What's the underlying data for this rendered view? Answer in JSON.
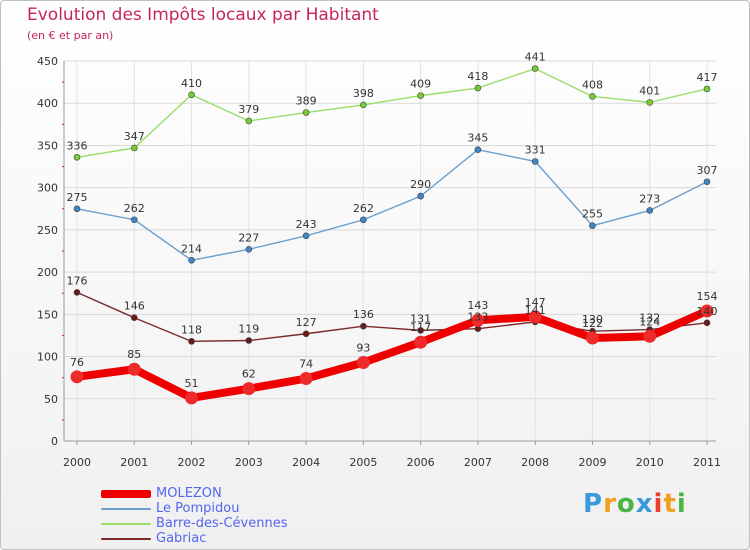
{
  "title": "Evolution des Impôts locaux par Habitant",
  "subtitle": "(en € et par an)",
  "logo": {
    "text": "Proxiti",
    "letters": [
      "P",
      "r",
      "o",
      "x",
      "i",
      "t",
      "i"
    ],
    "letter_colors": [
      "#3a9ad9",
      "#f0a020",
      "#4bb543",
      "#3a9ad9",
      "#e8402a",
      "#f0a020",
      "#4bb543"
    ]
  },
  "chart_data": {
    "type": "line",
    "title": "Evolution des Impôts locaux par Habitant",
    "subtitle": "(en € et par an)",
    "xlabel": "",
    "ylabel": "",
    "x": [
      "2000",
      "2001",
      "2002",
      "2003",
      "2004",
      "2005",
      "2006",
      "2007",
      "2008",
      "2009",
      "2010",
      "2011"
    ],
    "ylim": [
      0,
      450
    ],
    "yticks": [
      "0",
      "50",
      "100",
      "150",
      "200",
      "250",
      "300",
      "350",
      "400",
      "450"
    ],
    "grid": true,
    "legend_position": "bottom-left",
    "series": [
      {
        "name": "MOLEZON",
        "color": "#ee0000",
        "marker": "#ee2a2a",
        "values": [
          76,
          85,
          51,
          62,
          74,
          93,
          117,
          143,
          147,
          122,
          124,
          154
        ],
        "labels": [
          "76",
          "85",
          "51",
          "62",
          "74",
          "93",
          "117",
          "143",
          "147",
          "122",
          "124",
          "154"
        ]
      },
      {
        "name": "Le Pompidou",
        "color": "#6a9fcf",
        "marker": "#3d85c6",
        "values": [
          275,
          262,
          214,
          227,
          243,
          262,
          290,
          345,
          331,
          255,
          273,
          307
        ],
        "labels": [
          "275",
          "262",
          "214",
          "227",
          "243",
          "262",
          "290",
          "345",
          "331",
          "255",
          "273",
          "307"
        ]
      },
      {
        "name": "Barre-des-Cévennes",
        "color": "#99dd66",
        "marker": "#77cc33",
        "values": [
          336,
          347,
          410,
          379,
          389,
          398,
          409,
          418,
          441,
          408,
          401,
          417
        ],
        "labels": [
          "336",
          "347",
          "410",
          "379",
          "389",
          "398",
          "409",
          "418",
          "441",
          "408",
          "401",
          "417"
        ]
      },
      {
        "name": "Gabriac",
        "color": "#7a2a2a",
        "marker": "#6a1a1a",
        "values": [
          176,
          146,
          118,
          119,
          127,
          136,
          131,
          133,
          141,
          130,
          132,
          140
        ],
        "labels": [
          "176",
          "146",
          "118",
          "119",
          "127",
          "136",
          "131",
          "133",
          "141",
          "130",
          "132",
          "140"
        ]
      }
    ]
  }
}
